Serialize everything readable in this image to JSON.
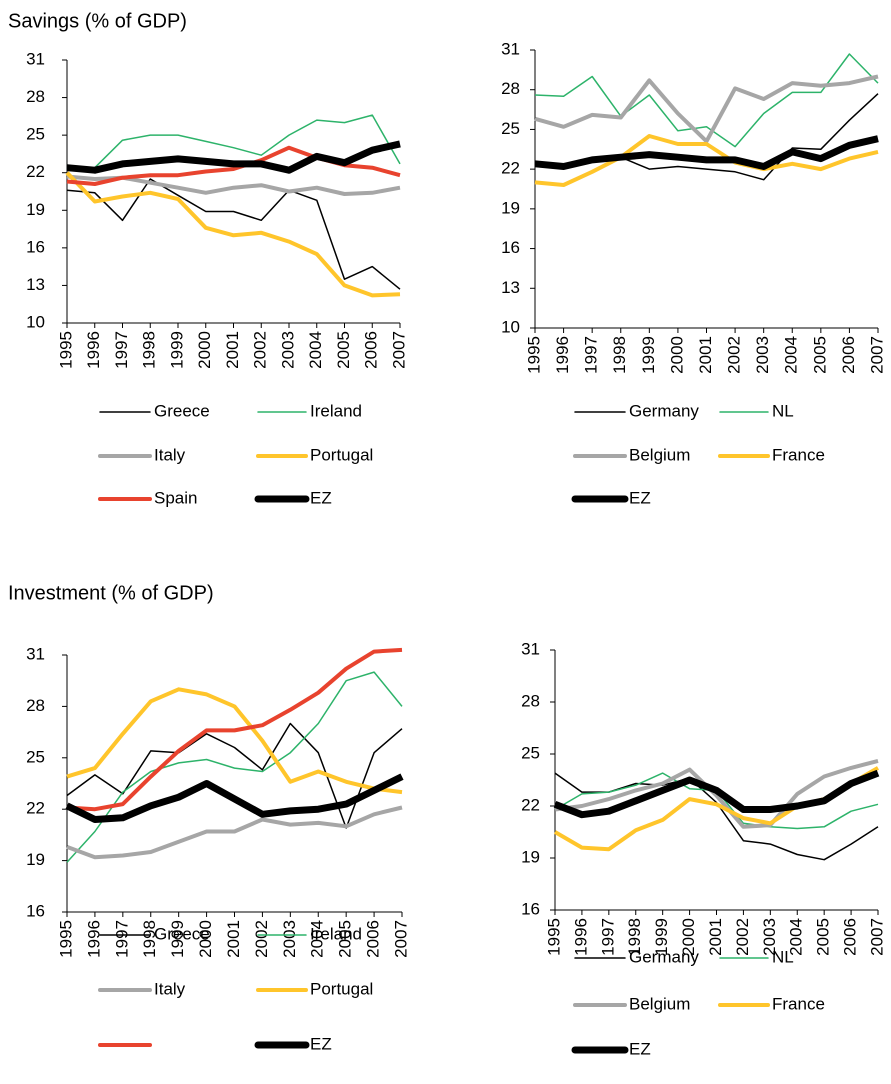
{
  "chart_data": [
    {
      "type": "line",
      "title": "Savings (% of GDP)",
      "categories": [
        "1995",
        "1996",
        "1997",
        "1998",
        "1999",
        "2000",
        "2001",
        "2002",
        "2003",
        "2004",
        "2005",
        "2006",
        "2007"
      ],
      "ylim": [
        10,
        31
      ],
      "yticks": [
        10,
        13,
        16,
        19,
        22,
        25,
        28,
        31
      ],
      "series": [
        {
          "name": "Greece",
          "color": "#000000",
          "width": 1.5,
          "values": [
            20.6,
            20.4,
            18.2,
            21.5,
            20.2,
            18.9,
            18.9,
            18.2,
            20.6,
            19.8,
            13.5,
            14.5,
            12.7
          ]
        },
        {
          "name": "Ireland",
          "color": "#2db36a",
          "width": 1.5,
          "values": [
            22.2,
            22.4,
            24.6,
            25.0,
            25.0,
            24.5,
            24.0,
            23.4,
            25.0,
            26.2,
            26.0,
            26.6,
            22.7
          ]
        },
        {
          "name": "Italy",
          "color": "#a6a6a6",
          "width": 4,
          "values": [
            21.7,
            21.5,
            21.6,
            21.2,
            20.8,
            20.4,
            20.8,
            21.0,
            20.5,
            20.8,
            20.3,
            20.4,
            20.8
          ]
        },
        {
          "name": "Portugal",
          "color": "#ffc52b",
          "width": 4,
          "values": [
            22.0,
            19.7,
            20.1,
            20.4,
            19.9,
            17.6,
            17.0,
            17.2,
            16.5,
            15.5,
            13.0,
            12.2,
            12.3
          ]
        },
        {
          "name": "Spain",
          "color": "#e8432e",
          "width": 4,
          "values": [
            21.3,
            21.1,
            21.6,
            21.8,
            21.8,
            22.1,
            22.3,
            23.0,
            24.0,
            23.2,
            22.6,
            22.4,
            21.8
          ]
        },
        {
          "name": "EZ",
          "color": "#000000",
          "width": 7,
          "values": [
            22.4,
            22.2,
            22.7,
            22.9,
            23.1,
            22.9,
            22.7,
            22.7,
            22.2,
            23.3,
            22.8,
            23.8,
            24.3
          ]
        }
      ]
    },
    {
      "type": "line",
      "categories": [
        "1995",
        "1996",
        "1997",
        "1998",
        "1999",
        "2000",
        "2001",
        "2002",
        "2003",
        "2004",
        "2005",
        "2006",
        "2007"
      ],
      "ylim": [
        10,
        31
      ],
      "yticks": [
        10,
        13,
        16,
        19,
        22,
        25,
        28,
        31
      ],
      "series": [
        {
          "name": "Germany",
          "color": "#000000",
          "width": 1.5,
          "values": [
            22.6,
            22.2,
            22.8,
            22.9,
            22.0,
            22.2,
            22.0,
            21.8,
            21.2,
            23.6,
            23.5,
            25.7,
            27.7
          ]
        },
        {
          "name": "NL",
          "color": "#2db36a",
          "width": 1.5,
          "values": [
            27.6,
            27.5,
            29.0,
            26.0,
            27.6,
            24.9,
            25.2,
            23.7,
            26.2,
            27.8,
            27.8,
            30.7,
            28.5
          ]
        },
        {
          "name": "Belgium",
          "color": "#a6a6a6",
          "width": 4,
          "values": [
            25.8,
            25.2,
            26.1,
            25.9,
            28.7,
            26.2,
            24.1,
            28.1,
            27.3,
            28.5,
            28.3,
            28.5,
            29.0
          ]
        },
        {
          "name": "France",
          "color": "#ffc52b",
          "width": 4,
          "values": [
            21.0,
            20.8,
            21.8,
            22.9,
            24.5,
            23.9,
            23.9,
            22.5,
            22.0,
            22.4,
            22.0,
            22.8,
            23.3
          ]
        },
        {
          "name": "EZ",
          "color": "#000000",
          "width": 7,
          "values": [
            22.4,
            22.2,
            22.7,
            22.9,
            23.1,
            22.9,
            22.7,
            22.7,
            22.2,
            23.3,
            22.8,
            23.8,
            24.3
          ]
        }
      ]
    },
    {
      "type": "line",
      "title": "Investment (% of GDP)",
      "categories": [
        "1995",
        "1996",
        "1997",
        "1998",
        "1999",
        "2000",
        "2001",
        "2002",
        "2003",
        "2004",
        "2005",
        "2006",
        "2007"
      ],
      "ylim": [
        16,
        31
      ],
      "yticks": [
        16,
        19,
        22,
        25,
        28,
        31
      ],
      "series": [
        {
          "name": "Greece",
          "color": "#000000",
          "width": 1.5,
          "values": [
            22.8,
            24.0,
            22.9,
            25.4,
            25.3,
            26.4,
            25.6,
            24.3,
            27.0,
            25.3,
            20.9,
            25.3,
            26.7
          ]
        },
        {
          "name": "Ireland",
          "color": "#2db36a",
          "width": 1.5,
          "values": [
            18.9,
            20.7,
            23.0,
            24.2,
            24.7,
            24.9,
            24.4,
            24.2,
            25.3,
            27.0,
            29.5,
            30.0,
            28.0
          ]
        },
        {
          "name": "Italy",
          "color": "#a6a6a6",
          "width": 4,
          "values": [
            19.8,
            19.2,
            19.3,
            19.5,
            20.1,
            20.7,
            20.7,
            21.4,
            21.1,
            21.2,
            21.0,
            21.7,
            22.1
          ]
        },
        {
          "name": "Portugal",
          "color": "#ffc52b",
          "width": 4,
          "values": [
            23.9,
            24.4,
            26.4,
            28.3,
            29.0,
            28.7,
            28.0,
            26.0,
            23.6,
            24.2,
            23.6,
            23.2,
            23.0
          ]
        },
        {
          "name": null,
          "color": "#e8432e",
          "width": 4,
          "values": [
            22.1,
            22.0,
            22.3,
            23.9,
            25.4,
            26.6,
            26.6,
            26.9,
            27.8,
            28.8,
            30.2,
            31.2,
            31.3
          ]
        },
        {
          "name": "EZ",
          "color": "#000000",
          "width": 7,
          "values": [
            22.2,
            21.4,
            21.5,
            22.2,
            22.7,
            23.5,
            22.6,
            21.7,
            21.9,
            22.0,
            22.3,
            23.1,
            23.9
          ]
        }
      ]
    },
    {
      "type": "line",
      "categories": [
        "1995",
        "1996",
        "1997",
        "1998",
        "1999",
        "2000",
        "2001",
        "2002",
        "2003",
        "2004",
        "2005",
        "2006",
        "2007"
      ],
      "ylim": [
        16,
        31
      ],
      "yticks": [
        16,
        19,
        22,
        25,
        28,
        31
      ],
      "series": [
        {
          "name": "Germany",
          "color": "#000000",
          "width": 1.5,
          "values": [
            23.9,
            22.8,
            22.8,
            23.3,
            23.2,
            23.6,
            22.2,
            20.0,
            19.8,
            19.2,
            18.9,
            19.8,
            20.8
          ]
        },
        {
          "name": "NL",
          "color": "#2db36a",
          "width": 1.5,
          "values": [
            21.8,
            22.7,
            22.8,
            23.2,
            23.9,
            23.0,
            22.9,
            21.0,
            20.8,
            20.7,
            20.8,
            21.7,
            22.1
          ]
        },
        {
          "name": "Belgium",
          "color": "#a6a6a6",
          "width": 4,
          "values": [
            21.8,
            22.0,
            22.4,
            22.9,
            23.3,
            24.1,
            22.6,
            20.8,
            20.9,
            22.7,
            23.7,
            24.2,
            24.6
          ]
        },
        {
          "name": "France",
          "color": "#ffc52b",
          "width": 4,
          "values": [
            20.5,
            19.6,
            19.5,
            20.6,
            21.2,
            22.4,
            22.1,
            21.3,
            21.0,
            22.0,
            22.4,
            23.3,
            24.2
          ]
        },
        {
          "name": "EZ",
          "color": "#000000",
          "width": 7,
          "values": [
            22.1,
            21.5,
            21.7,
            22.3,
            22.9,
            23.5,
            22.9,
            21.8,
            21.8,
            22.0,
            22.3,
            23.3,
            23.9
          ]
        }
      ]
    }
  ]
}
